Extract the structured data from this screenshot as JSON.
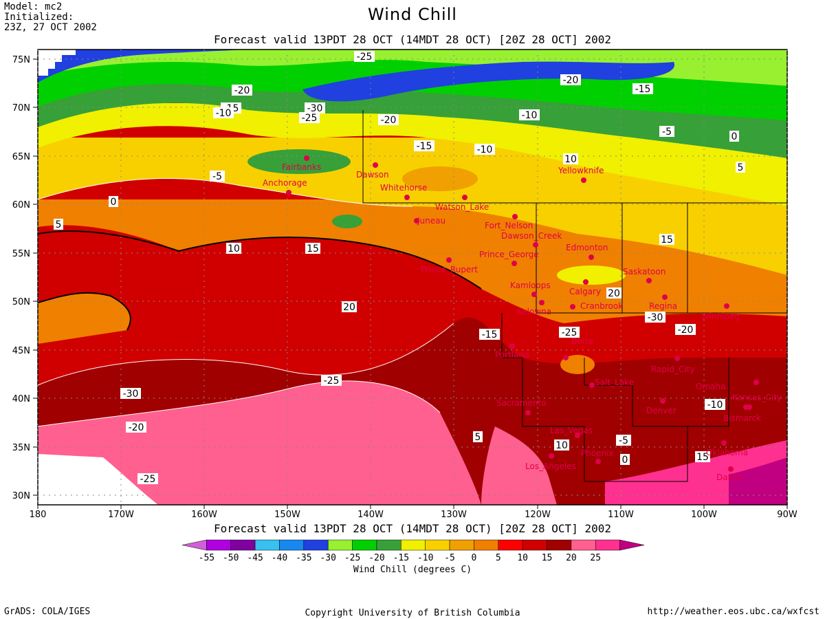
{
  "header": {
    "model": "Model: mc2",
    "initialized_label": "Initialized:",
    "initialized_time": "23Z, 27 OCT 2002",
    "title": "Wind Chill",
    "valid_top": "Forecast valid 13PDT 28 OCT (14MDT 28 OCT) [20Z 28 OCT] 2002",
    "valid_bottom": "Forecast valid 13PDT 28 OCT (14MDT 28 OCT) [20Z 28 OCT] 2002"
  },
  "map": {
    "lat_labels": [
      "75N",
      "70N",
      "65N",
      "60N",
      "55N",
      "50N",
      "45N",
      "40N",
      "35N",
      "30N"
    ],
    "lon_labels": [
      "180",
      "170W",
      "160W",
      "150W",
      "140W",
      "130W",
      "120W",
      "110W",
      "100W",
      "90W"
    ],
    "contour_labels": [
      "-25",
      "-20",
      "-15",
      "-10",
      "-30",
      "-25",
      "-20",
      "-15",
      "-10",
      "-5",
      "0",
      "5",
      "10",
      "15",
      "20",
      "-25",
      "-30",
      "-20",
      "-25",
      "-20",
      "-15",
      "-10",
      "-5",
      "0",
      "5",
      "10",
      "15",
      "20",
      "-30",
      "-25",
      "-20",
      "-15",
      "-10",
      "-5",
      "0",
      "5",
      "10",
      "15"
    ],
    "cities": [
      {
        "name": "Fairbanks"
      },
      {
        "name": "Anchorage"
      },
      {
        "name": "Dawson"
      },
      {
        "name": "Whitehorse"
      },
      {
        "name": "Watson_Lake"
      },
      {
        "name": "Juneau"
      },
      {
        "name": "Yellowknife"
      },
      {
        "name": "Fort_Nelson"
      },
      {
        "name": "Dawson_Creek"
      },
      {
        "name": "Prince_George"
      },
      {
        "name": "Edmonton"
      },
      {
        "name": "Saskatoon"
      },
      {
        "name": "Kamloops"
      },
      {
        "name": "Calgary"
      },
      {
        "name": "Cranbrook"
      },
      {
        "name": "Regina"
      },
      {
        "name": "Winnipeg"
      },
      {
        "name": "Kelowna"
      },
      {
        "name": "Portland"
      },
      {
        "name": "Boise"
      },
      {
        "name": "Rapid_City"
      },
      {
        "name": "Omaha"
      },
      {
        "name": "Kansas_City"
      },
      {
        "name": "Denver"
      },
      {
        "name": "Sacramento"
      },
      {
        "name": "Las_Vegas"
      },
      {
        "name": "Phoenix"
      },
      {
        "name": "Los_Angeles"
      },
      {
        "name": "Oklahoma"
      },
      {
        "name": "Dallas"
      },
      {
        "name": "Bismarck"
      },
      {
        "name": "Salt_Lake"
      },
      {
        "name": "Prince_Rupert"
      }
    ]
  },
  "colorbar": {
    "title": "Wind Chill (degrees C)",
    "ticks": [
      "-55",
      "-50",
      "-45",
      "-40",
      "-35",
      "-30",
      "-25",
      "-20",
      "-15",
      "-10",
      "-5",
      "0",
      "5",
      "10",
      "15",
      "20",
      "25"
    ],
    "colors": [
      "#d060d8",
      "#b000e0",
      "#8000a0",
      "#38c0f0",
      "#1888f0",
      "#2040e0",
      "#98f030",
      "#00d000",
      "#38a038",
      "#f0f000",
      "#f8d000",
      "#f0a000",
      "#f08000",
      "#ff0000",
      "#d00000",
      "#a00000",
      "#ff6090",
      "#ff3090",
      "#c00080"
    ]
  },
  "footer": {
    "left": "GrADS: COLA/IGES",
    "center": "Copyright University of British Columbia",
    "right": "http://weather.eos.ubc.ca/wxfcst"
  }
}
